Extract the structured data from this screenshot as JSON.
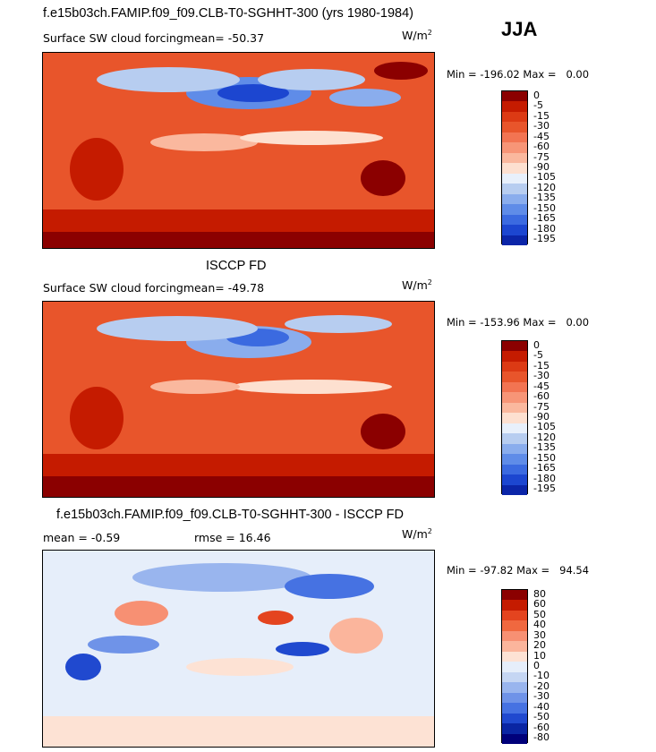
{
  "season": "JJA",
  "units_label": "W/m",
  "units_sup": "2",
  "colors": {
    "red": [
      "#8b0000",
      "#c51b00",
      "#dc3a14",
      "#e8552b",
      "#f27452",
      "#f79577",
      "#fab89e",
      "#fde0d0"
    ],
    "blue": [
      "#e8f0fb",
      "#b7cdf0",
      "#8aaded",
      "#5f8ce8",
      "#3b6ae0",
      "#1c46d0",
      "#0b25a8",
      "#00007a"
    ],
    "diff": [
      "#8b0000",
      "#c51b00",
      "#e4441f",
      "#f0683f",
      "#f79073",
      "#fbb59c",
      "#fde2d4",
      "#e6eefa",
      "#c5d6f3",
      "#99b5ee",
      "#6f93e8",
      "#4672e2",
      "#2049cf",
      "#0a25a3",
      "#00007a"
    ]
  },
  "panels": [
    {
      "id": "model",
      "title": "f.e15b03ch.FAMIP.f09_f09.CLB-T0-SGHHT-300 (yrs 1980-1984)",
      "subtitle": "Surface SW cloud forcing",
      "mean_label": "mean=",
      "mean_value": "-50.37",
      "min_label": "Min =",
      "min_value": "-196.02",
      "max_label": "Max =",
      "max_value": "0.00",
      "chart_data": {
        "type": "heatmap",
        "title": "f.e15b03ch.FAMIP.f09_f09.CLB-T0-SGHHT-300 (yrs 1980-1984)",
        "variable": "Surface SW cloud forcing",
        "units": "W/m2",
        "mean": -50.37,
        "min": -196.02,
        "max": 0.0,
        "colorbar_levels": [
          "0",
          "-5",
          "-15",
          "-30",
          "-45",
          "-60",
          "-75",
          "-90",
          "-105",
          "-120",
          "-135",
          "-150",
          "-165",
          "-180",
          "-195"
        ]
      }
    },
    {
      "id": "obs",
      "title": "ISCCP FD",
      "subtitle": "Surface SW cloud forcing",
      "mean_label": "mean=",
      "mean_value": "-49.78",
      "min_label": "Min =",
      "min_value": "-153.96",
      "max_label": "Max =",
      "max_value": "0.00",
      "chart_data": {
        "type": "heatmap",
        "title": "ISCCP FD",
        "variable": "Surface SW cloud forcing",
        "units": "W/m2",
        "mean": -49.78,
        "min": -153.96,
        "max": 0.0,
        "colorbar_levels": [
          "0",
          "-5",
          "-15",
          "-30",
          "-45",
          "-60",
          "-75",
          "-90",
          "-105",
          "-120",
          "-135",
          "-150",
          "-165",
          "-180",
          "-195"
        ]
      }
    },
    {
      "id": "diff",
      "title": "f.e15b03ch.FAMIP.f09_f09.CLB-T0-SGHHT-300 - ISCCP FD",
      "mean_label": "mean =",
      "mean_value": "-0.59",
      "rmse_label": "rmse =",
      "rmse_value": "16.46",
      "min_label": "Min =",
      "min_value": "-97.82",
      "max_label": "Max =",
      "max_value": "94.54",
      "chart_data": {
        "type": "heatmap",
        "title": "f.e15b03ch.FAMIP.f09_f09.CLB-T0-SGHHT-300 - ISCCP FD",
        "units": "W/m2",
        "mean": -0.59,
        "rmse": 16.46,
        "min": -97.82,
        "max": 94.54,
        "colorbar_levels": [
          "80",
          "60",
          "50",
          "40",
          "30",
          "20",
          "10",
          "0",
          "-10",
          "-20",
          "-30",
          "-40",
          "-50",
          "-60",
          "-80"
        ]
      }
    }
  ]
}
